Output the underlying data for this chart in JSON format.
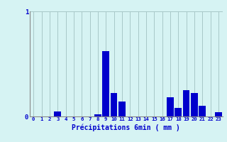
{
  "xlabel": "Précipitations 6min ( mm )",
  "categories": [
    0,
    1,
    2,
    3,
    4,
    5,
    6,
    7,
    8,
    9,
    10,
    11,
    12,
    13,
    14,
    15,
    16,
    17,
    18,
    19,
    20,
    21,
    22,
    23
  ],
  "values": [
    0,
    0,
    0,
    0.05,
    0,
    0,
    0,
    0,
    0.02,
    0.62,
    0.22,
    0.14,
    0,
    0,
    0,
    0,
    0,
    0.18,
    0.08,
    0.25,
    0.22,
    0.1,
    0,
    0.04
  ],
  "bar_color": "#0000cc",
  "bg_color": "#d6f3f3",
  "grid_color": "#a8c8c8",
  "text_color": "#0000cc",
  "ylim": [
    0,
    1.0
  ],
  "yticks": [
    0,
    1
  ],
  "xlim": [
    -0.5,
    23.5
  ],
  "figw": 3.2,
  "figh": 2.0,
  "dpi": 100
}
